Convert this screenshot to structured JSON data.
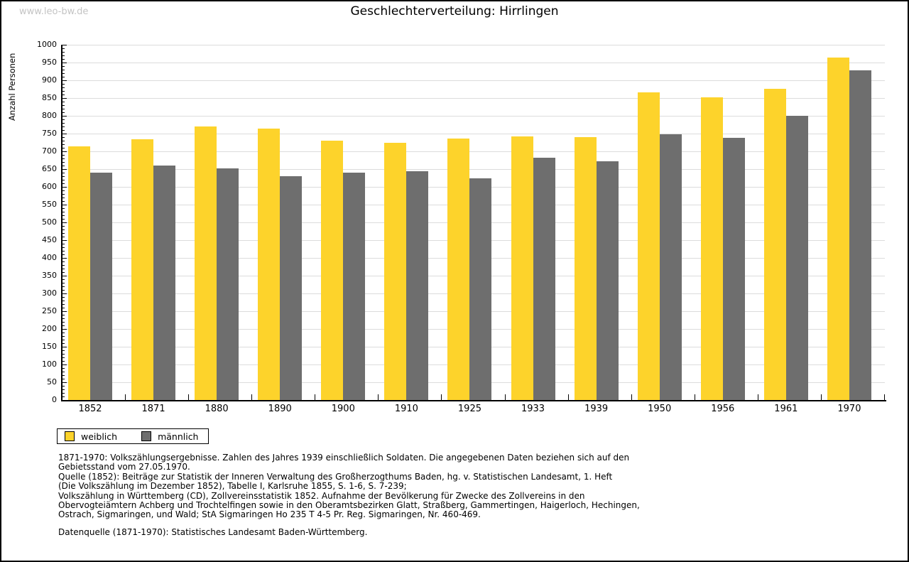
{
  "watermark": "www.leo-bw.de",
  "title": "Geschlechterverteilung: Hirrlingen",
  "ylabel": "Anzahl Personen",
  "legend": {
    "weiblich_label": "weiblich",
    "maennlich_label": "männlich"
  },
  "colors": {
    "weiblich": "#fdd32b",
    "maennlich": "#6e6e6e",
    "grid": "#dcdcdc",
    "watermark": "#c4c4c4"
  },
  "footnotes": [
    "1871-1970: Volkszählungsergebnisse. Zahlen des Jahres 1939 einschließlich Soldaten. Die angegebenen Daten beziehen sich auf den",
    "Gebietsstand vom 27.05.1970.",
    "Quelle (1852): Beiträge zur Statistik der Inneren Verwaltung des Großherzogthums Baden, hg. v. Statistischen Landesamt, 1. Heft",
    "(Die Volkszählung im Dezember 1852), Tabelle I, Karlsruhe 1855, S. 1-6, S. 7-239;",
    "Volkszählung in Württemberg (CD), Zollvereinsstatistik 1852. Aufnahme der Bevölkerung für Zwecke des Zollvereins in den",
    "Obervogteiämtern Achberg und Trochtelfingen sowie in den Oberamtsbezirken Glatt, Straßberg, Gammertingen, Haigerloch, Hechingen,",
    "Ostrach, Sigmaringen, und Wald; StA Sigmaringen Ho 235 T 4-5 Pr. Reg. Sigmaringen, Nr. 460-469."
  ],
  "datenquelle": "Datenquelle (1871-1970): Statistisches Landesamt Baden-Württemberg.",
  "chart_data": {
    "type": "bar",
    "title": "Geschlechterverteilung: Hirrlingen",
    "xlabel": "",
    "ylabel": "Anzahl Personen",
    "categories": [
      "1852",
      "1871",
      "1880",
      "1890",
      "1900",
      "1910",
      "1925",
      "1933",
      "1939",
      "1950",
      "1956",
      "1961",
      "1970"
    ],
    "series": [
      {
        "name": "weiblich",
        "values": [
          715,
          735,
          770,
          764,
          731,
          725,
          736,
          742,
          740,
          867,
          852,
          877,
          964
        ]
      },
      {
        "name": "männlich",
        "values": [
          640,
          660,
          653,
          630,
          640,
          645,
          625,
          683,
          672,
          748,
          739,
          800,
          928
        ]
      }
    ],
    "ylim": [
      0,
      1000
    ],
    "ytick_step": 50,
    "ytick_minor_step": 10,
    "grid": true,
    "legend_position": "bottom-left"
  }
}
